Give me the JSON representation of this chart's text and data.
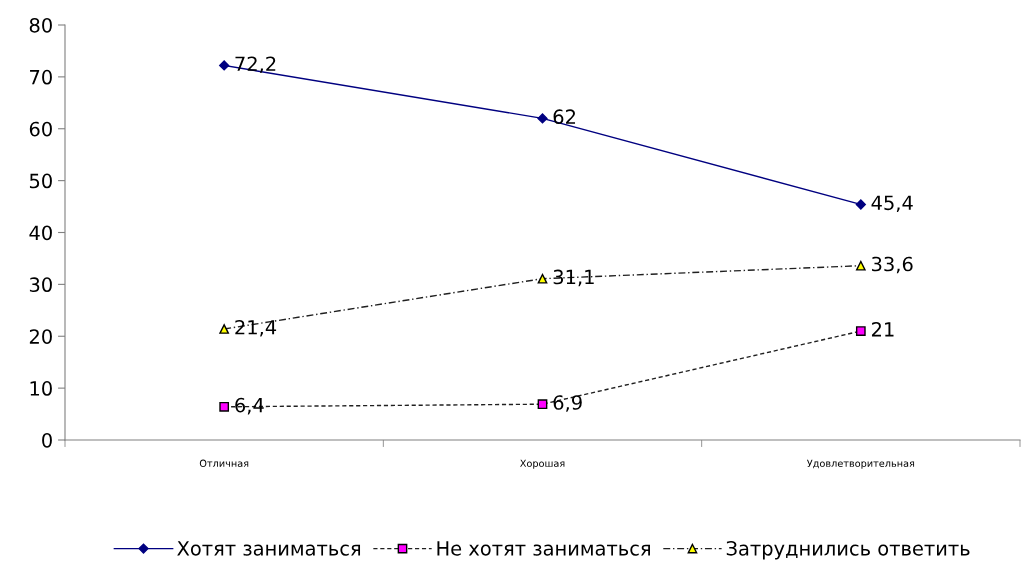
{
  "chart_data": {
    "type": "line",
    "categories": [
      "Отличная",
      "Хорошая",
      "Удовлетворительная"
    ],
    "series": [
      {
        "name": "Хотят заниматься",
        "color": "#000080",
        "values": [
          72.2,
          62,
          45.4
        ],
        "marker": "diamond",
        "line_style": "solid",
        "value_labels": [
          "72,2",
          "62",
          "45,4"
        ]
      },
      {
        "name": "Не хотят заниматься",
        "color": "#ff00ff",
        "values": [
          6.4,
          6.9,
          21
        ],
        "marker": "square",
        "line_style": "dashed",
        "value_labels": [
          "6,4",
          "6,9",
          "21"
        ]
      },
      {
        "name": "Затруднились ответить",
        "color": "#ffff00",
        "values": [
          21.4,
          31.1,
          33.6
        ],
        "marker": "triangle",
        "line_style": "dashdot",
        "value_labels": [
          "21,4",
          "31,1",
          "33,6"
        ]
      }
    ],
    "ylim": [
      0,
      80
    ],
    "yticks": [
      0,
      10,
      20,
      30,
      40,
      50,
      60,
      70,
      80
    ],
    "grid": false,
    "legend": "bottom"
  }
}
